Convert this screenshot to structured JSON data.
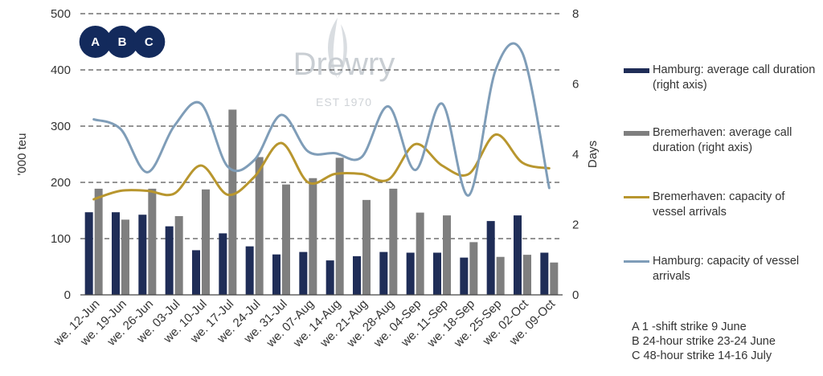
{
  "colors": {
    "hamburg_call": "#1f2d57",
    "bremerhaven_call": "#7f7f7f",
    "bremerhaven_capacity": "#b8962e",
    "hamburg_capacity": "#7f9db8",
    "badge": "#132a5c",
    "grid": "#555555"
  },
  "watermark": {
    "name": "Drewry",
    "est": "EST 1970"
  },
  "strike_markers": [
    {
      "label": "A",
      "week": "we. 12-Jun"
    },
    {
      "label": "B",
      "week": "we. 19-Jun"
    },
    {
      "label": "C",
      "week": "we. 26-Jun"
    }
  ],
  "notes": [
    "A 1 -shift strike 9 June",
    "B 24-hour strike 23-24 June",
    "C 48-hour strike 14-16 July"
  ],
  "chart_data": {
    "type": "bar",
    "categories": [
      "we. 12-Jun",
      "we. 19-Jun",
      "we. 26-Jun",
      "we. 03-Jul",
      "we. 10-Jul",
      "we. 17-Jul",
      "we. 24-Jul",
      "we. 31-Jul",
      "we. 07-Aug",
      "we. 14-Aug",
      "we. 21-Aug",
      "we. 28-Aug",
      "we. 04-Sep",
      "we. 11-Sep",
      "we. 18-Sep",
      "we. 25-Sep",
      "we. 02-Oct",
      "we. 09-Oct"
    ],
    "ylabel": "'000 teu",
    "y2label": "Days",
    "ylim": [
      0,
      500
    ],
    "y2lim": [
      0,
      8
    ],
    "yticks": [
      0,
      100,
      200,
      300,
      400,
      500
    ],
    "y2ticks": [
      0,
      2,
      4,
      6,
      8
    ],
    "grid": true,
    "legend_position": "right",
    "series": [
      {
        "name": "Hamburg: average call duration (right axis)",
        "type": "bar",
        "axis": "right",
        "color_key": "hamburg_call",
        "values": [
          2.35,
          2.35,
          2.28,
          1.95,
          1.27,
          1.75,
          1.38,
          1.15,
          1.22,
          0.98,
          1.1,
          1.22,
          1.2,
          1.2,
          1.06,
          2.1,
          2.26,
          1.2
        ]
      },
      {
        "name": "Bremerhaven: average call duration (right axis)",
        "type": "bar",
        "axis": "right",
        "color_key": "bremerhaven_call",
        "values": [
          3.02,
          2.14,
          3.02,
          2.24,
          3.0,
          5.27,
          3.92,
          3.14,
          3.32,
          3.9,
          2.7,
          3.02,
          2.34,
          2.26,
          1.5,
          1.08,
          1.14,
          0.92
        ]
      },
      {
        "name": "Bremerhaven: capacity of vessel arrivals",
        "type": "line",
        "axis": "left",
        "color_key": "bremerhaven_capacity",
        "values": [
          170,
          185,
          185,
          180,
          230,
          178,
          210,
          270,
          200,
          215,
          215,
          205,
          268,
          230,
          215,
          285,
          235,
          225
        ]
      },
      {
        "name": "Hamburg: capacity of vessel arrivals",
        "type": "line",
        "axis": "left",
        "color_key": "hamburg_capacity",
        "values": [
          312,
          295,
          218,
          300,
          340,
          228,
          240,
          320,
          255,
          252,
          245,
          335,
          222,
          340,
          177,
          400,
          430,
          190
        ]
      }
    ]
  }
}
